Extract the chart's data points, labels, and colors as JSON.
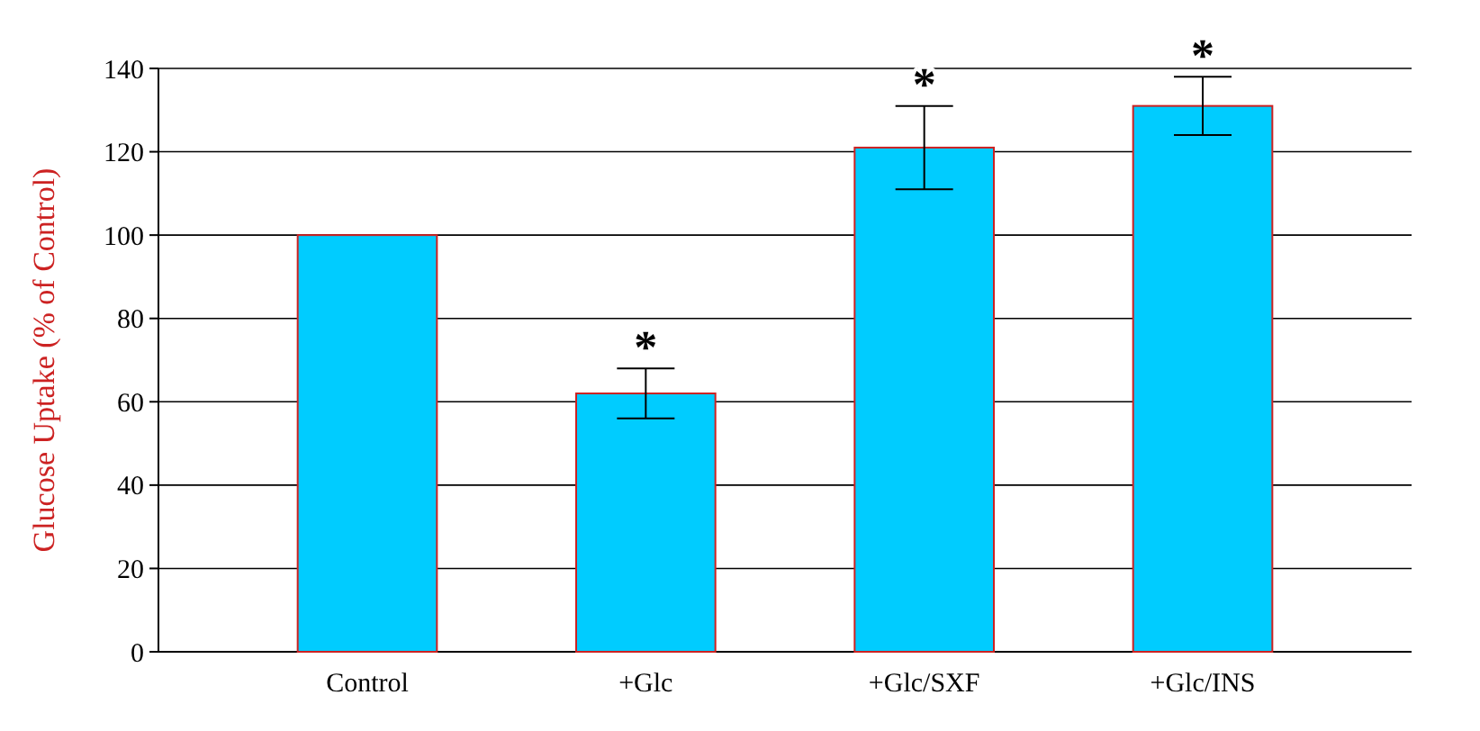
{
  "chart_data": {
    "type": "bar",
    "ylabel": "Glucose Uptake (% of Control)",
    "categories": [
      "Control",
      "+Glc",
      "+Glc/SXF",
      "+Glc/INS"
    ],
    "values": [
      100,
      62,
      121,
      131
    ],
    "errors": [
      null,
      6,
      10,
      7
    ],
    "color": "#00ccff",
    "ylim": [
      0,
      140
    ],
    "yticks": [
      0,
      20,
      40,
      60,
      80,
      100,
      120,
      140
    ],
    "grid": "y",
    "annotations": [
      {
        "text": "*",
        "x": "+Glc",
        "y": 69
      },
      {
        "text": "*",
        "x": "+Glc/SXF",
        "y": 132
      },
      {
        "text": "*",
        "x": "+Glc/INS",
        "y": 139
      }
    ]
  }
}
